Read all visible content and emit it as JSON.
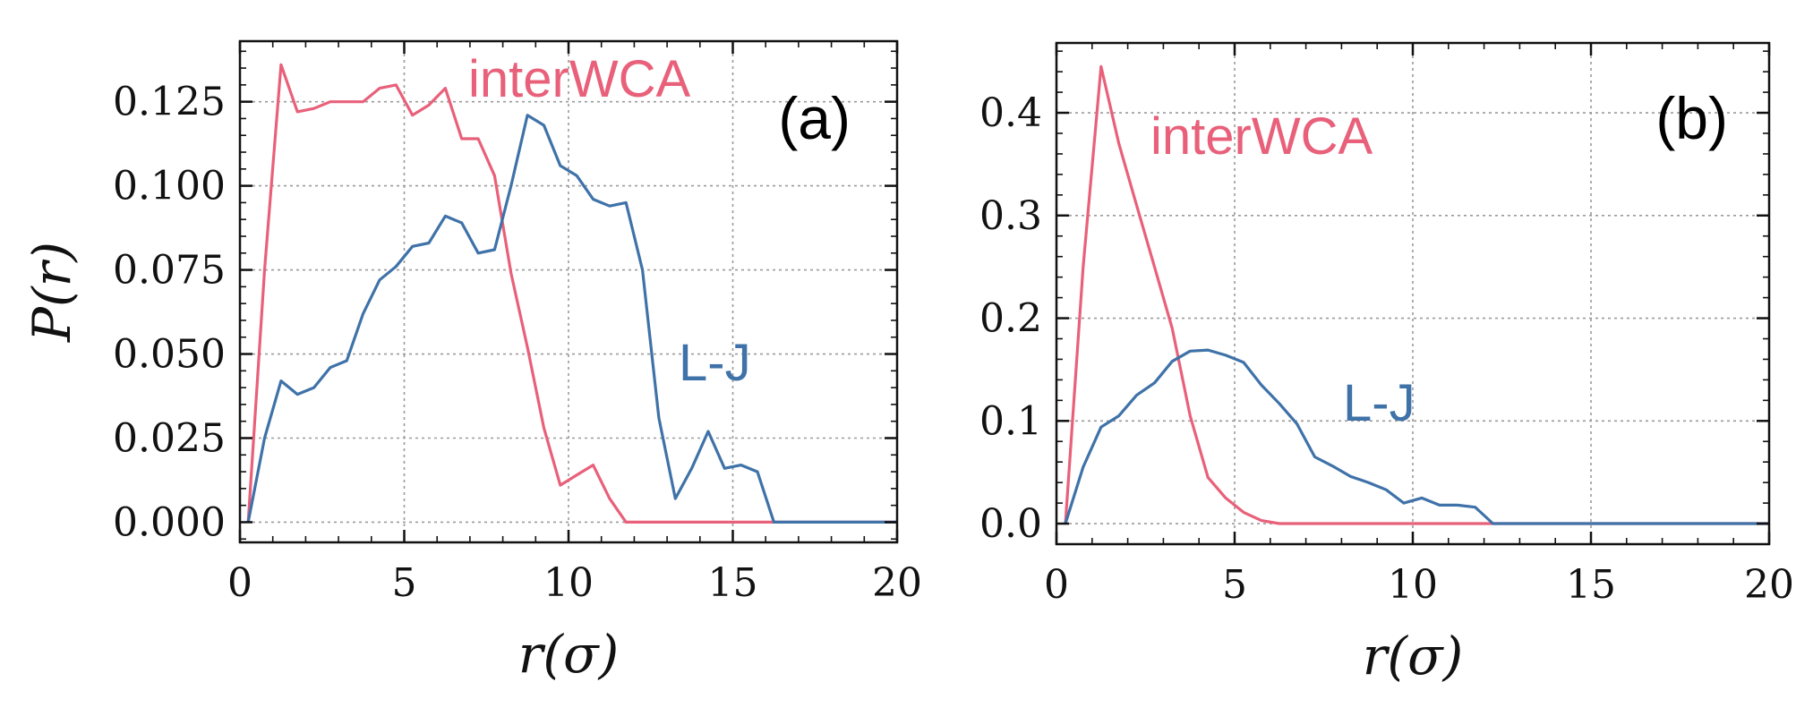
{
  "colors": {
    "interWCA": "#e8607a",
    "lj": "#3f72a8"
  },
  "chart_data": [
    {
      "type": "line",
      "panel": "(a)",
      "xlabel": "r(σ)",
      "ylabel": "P(r)",
      "xlim": [
        0,
        20
      ],
      "ylim": [
        -0.006,
        0.143
      ],
      "xticks": [
        0,
        5,
        10,
        15,
        20
      ],
      "xtick_labels": [
        "0",
        "5",
        "10",
        "15",
        "20"
      ],
      "yticks": [
        0,
        0.025,
        0.05,
        0.075,
        0.1,
        0.125
      ],
      "ytick_labels": [
        "0.000",
        "0.025",
        "0.050",
        "0.075",
        "0.100",
        "0.125"
      ],
      "grid": true,
      "series": [
        {
          "name": "interWCA",
          "color_key": "interWCA",
          "x": [
            0.25,
            0.75,
            1.25,
            1.75,
            2.25,
            2.75,
            3.25,
            3.75,
            4.25,
            4.75,
            5.25,
            5.75,
            6.25,
            6.75,
            7.25,
            7.75,
            8.25,
            8.75,
            9.25,
            9.75,
            10.25,
            10.75,
            11.25,
            11.75,
            20.0
          ],
          "y": [
            0.0,
            0.075,
            0.136,
            0.122,
            0.123,
            0.125,
            0.125,
            0.125,
            0.129,
            0.13,
            0.121,
            0.124,
            0.129,
            0.114,
            0.114,
            0.103,
            0.074,
            0.052,
            0.028,
            0.011,
            0.014,
            0.017,
            0.007,
            0.0,
            0.0
          ]
        },
        {
          "name": "L-J",
          "color_key": "lj",
          "x": [
            0.25,
            0.75,
            1.25,
            1.75,
            2.25,
            2.75,
            3.25,
            3.75,
            4.25,
            4.75,
            5.25,
            5.75,
            6.25,
            6.75,
            7.25,
            7.75,
            8.25,
            8.75,
            9.25,
            9.75,
            10.25,
            10.75,
            11.25,
            11.75,
            12.25,
            12.75,
            13.25,
            13.75,
            14.25,
            14.75,
            15.25,
            15.75,
            16.25,
            20.0
          ],
          "y": [
            0.0,
            0.025,
            0.042,
            0.038,
            0.04,
            0.046,
            0.048,
            0.062,
            0.072,
            0.076,
            0.082,
            0.083,
            0.091,
            0.089,
            0.08,
            0.081,
            0.1,
            0.121,
            0.118,
            0.106,
            0.103,
            0.096,
            0.094,
            0.095,
            0.075,
            0.031,
            0.007,
            0.016,
            0.027,
            0.016,
            0.017,
            0.015,
            0.0,
            0.0
          ]
        }
      ],
      "annotations": [
        {
          "text": "interWCA",
          "series": "interWCA"
        },
        {
          "text": "L-J",
          "series": "L-J"
        }
      ]
    },
    {
      "type": "line",
      "panel": "(b)",
      "xlabel": "r(σ)",
      "ylabel": "",
      "xlim": [
        0,
        20
      ],
      "ylim": [
        -0.02,
        0.468
      ],
      "xticks": [
        0,
        5,
        10,
        15,
        20
      ],
      "xtick_labels": [
        "0",
        "5",
        "10",
        "15",
        "20"
      ],
      "yticks": [
        0,
        0.1,
        0.2,
        0.3,
        0.4
      ],
      "ytick_labels": [
        "0.0",
        "0.1",
        "0.2",
        "0.3",
        "0.4"
      ],
      "grid": true,
      "series": [
        {
          "name": "interWCA",
          "color_key": "interWCA",
          "x": [
            0.25,
            0.75,
            1.25,
            1.75,
            2.25,
            2.75,
            3.25,
            3.75,
            4.25,
            4.75,
            5.25,
            5.75,
            6.25,
            20.0
          ],
          "y": [
            0.0,
            0.25,
            0.445,
            0.37,
            0.31,
            0.25,
            0.19,
            0.105,
            0.045,
            0.025,
            0.011,
            0.003,
            0.0,
            0.0
          ]
        },
        {
          "name": "L-J",
          "color_key": "lj",
          "x": [
            0.25,
            0.75,
            1.25,
            1.75,
            2.25,
            2.75,
            3.25,
            3.75,
            4.25,
            4.75,
            5.25,
            5.75,
            6.25,
            6.75,
            7.25,
            7.75,
            8.25,
            8.75,
            9.25,
            9.75,
            10.25,
            10.75,
            11.25,
            11.75,
            12.25,
            20.0
          ],
          "y": [
            0.0,
            0.055,
            0.094,
            0.105,
            0.125,
            0.137,
            0.158,
            0.168,
            0.169,
            0.164,
            0.157,
            0.135,
            0.117,
            0.097,
            0.065,
            0.056,
            0.046,
            0.04,
            0.033,
            0.02,
            0.025,
            0.018,
            0.018,
            0.016,
            0.0,
            0.0
          ]
        }
      ],
      "annotations": [
        {
          "text": "interWCA",
          "series": "interWCA"
        },
        {
          "text": "L-J",
          "series": "L-J"
        }
      ]
    }
  ]
}
